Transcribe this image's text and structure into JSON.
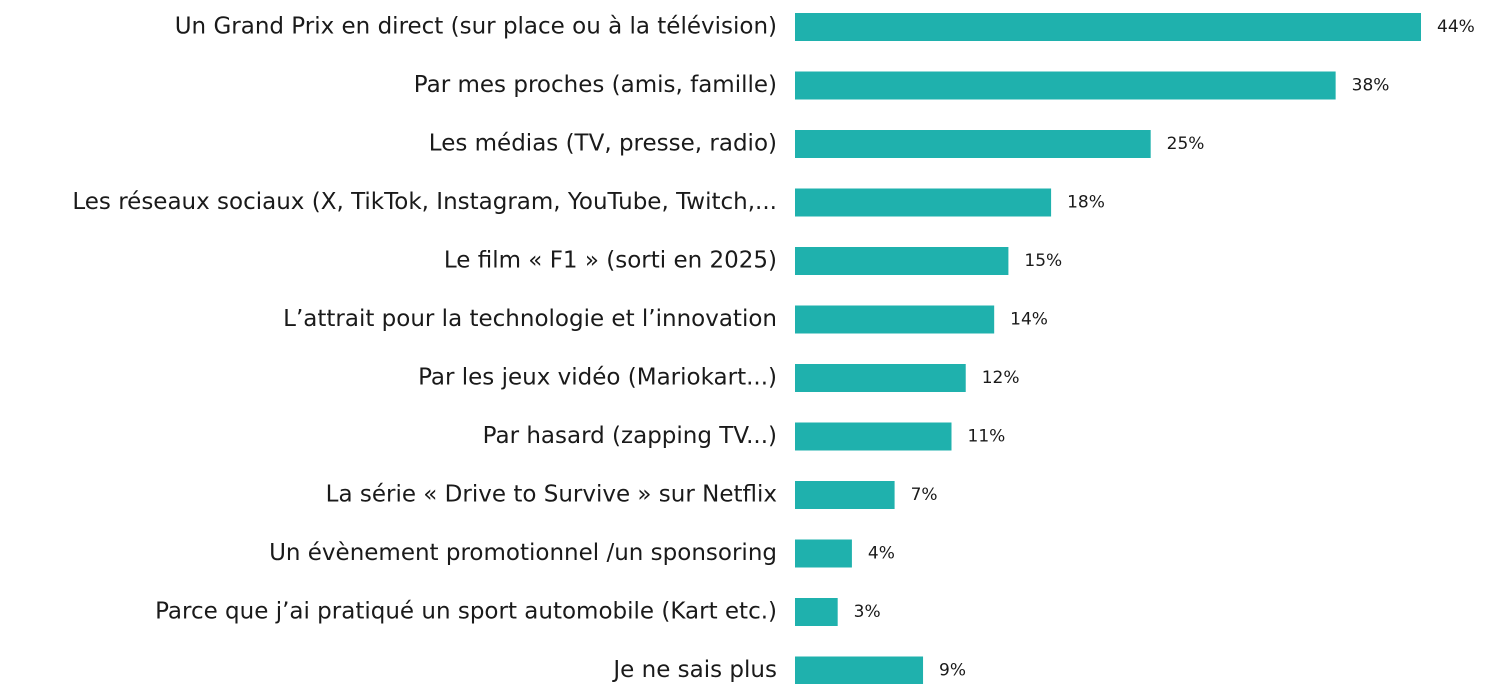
{
  "chart_data": {
    "type": "bar",
    "orientation": "horizontal",
    "categories": [
      "Un Grand Prix en direct (sur place ou à la télévision)",
      "Par mes proches (amis, famille)",
      "Les médias (TV, presse, radio)",
      "Les réseaux sociaux (X, TikTok, Instagram, YouTube, Twitch,...",
      "Le film « F1 » (sorti en 2025)",
      "L’attrait pour la technologie et l’innovation",
      "Par les jeux vidéo (Mariokart...)",
      "Par hasard (zapping TV...)",
      "La série « Drive to Survive » sur Netflix",
      "Un évènement promotionnel /un sponsoring",
      "Parce que j’ai pratiqué un sport automobile (Kart etc.)",
      "Je ne sais plus"
    ],
    "values": [
      44,
      38,
      25,
      18,
      15,
      14,
      12,
      11,
      7,
      4,
      3,
      9
    ],
    "value_labels": [
      "44%",
      "38%",
      "25%",
      "18%",
      "15%",
      "14%",
      "12%",
      "11%",
      "7%",
      "4%",
      "3%",
      "9%"
    ],
    "color": "#1fb1ad"
  }
}
